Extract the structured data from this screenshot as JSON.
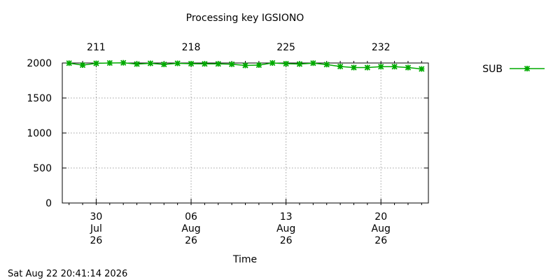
{
  "chart_data": {
    "type": "line",
    "title": "Processing key IGSIONO",
    "xlabel": "Time",
    "ylabel": "",
    "xlim": [
      "2026-07-27T12:00",
      "2026-08-23T12:00"
    ],
    "ylim": [
      0,
      2000
    ],
    "y_ticks": [
      0,
      500,
      1000,
      1500,
      2000
    ],
    "x_ticks": [
      {
        "date": "2026-07-30",
        "lines": [
          "30",
          "Jul",
          "26"
        ]
      },
      {
        "date": "2026-08-06",
        "lines": [
          "06",
          "Aug",
          "26"
        ]
      },
      {
        "date": "2026-08-13",
        "lines": [
          "13",
          "Aug",
          "26"
        ]
      },
      {
        "date": "2026-08-20",
        "lines": [
          "20",
          "Aug",
          "26"
        ]
      }
    ],
    "x2_ticks": [
      {
        "date": "2026-07-30",
        "label": "211"
      },
      {
        "date": "2026-08-06",
        "label": "218"
      },
      {
        "date": "2026-08-13",
        "label": "225"
      },
      {
        "date": "2026-08-20",
        "label": "232"
      }
    ],
    "grid": true,
    "legend_position": "right",
    "series": [
      {
        "name": "SUB",
        "color": "#00aa00",
        "marker": "asterisk",
        "points": [
          {
            "x": "2026-07-28",
            "y": 1998
          },
          {
            "x": "2026-07-29",
            "y": 1970
          },
          {
            "x": "2026-07-30",
            "y": 1995
          },
          {
            "x": "2026-07-31",
            "y": 2000
          },
          {
            "x": "2026-08-01",
            "y": 2003
          },
          {
            "x": "2026-08-02",
            "y": 1985
          },
          {
            "x": "2026-08-03",
            "y": 1995
          },
          {
            "x": "2026-08-04",
            "y": 1980
          },
          {
            "x": "2026-08-05",
            "y": 1995
          },
          {
            "x": "2026-08-06",
            "y": 1990
          },
          {
            "x": "2026-08-07",
            "y": 1988
          },
          {
            "x": "2026-08-08",
            "y": 1988
          },
          {
            "x": "2026-08-09",
            "y": 1982
          },
          {
            "x": "2026-08-10",
            "y": 1965
          },
          {
            "x": "2026-08-11",
            "y": 1970
          },
          {
            "x": "2026-08-12",
            "y": 2000
          },
          {
            "x": "2026-08-13",
            "y": 1990
          },
          {
            "x": "2026-08-14",
            "y": 1985
          },
          {
            "x": "2026-08-15",
            "y": 1998
          },
          {
            "x": "2026-08-16",
            "y": 1978
          },
          {
            "x": "2026-08-17",
            "y": 1950
          },
          {
            "x": "2026-08-18",
            "y": 1935
          },
          {
            "x": "2026-08-19",
            "y": 1935
          },
          {
            "x": "2026-08-20",
            "y": 1948
          },
          {
            "x": "2026-08-21",
            "y": 1948
          },
          {
            "x": "2026-08-22",
            "y": 1935
          },
          {
            "x": "2026-08-23",
            "y": 1915
          }
        ]
      }
    ]
  },
  "footer": {
    "timestamp": "Sat Aug 22 20:41:14 2026"
  }
}
